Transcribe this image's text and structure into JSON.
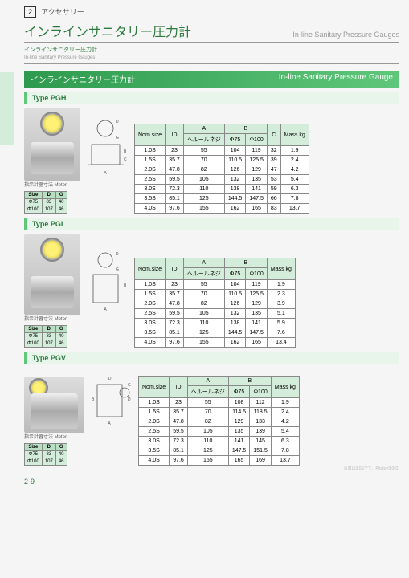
{
  "header": {
    "num": "2",
    "category": "アクセサリー",
    "title_jp": "インラインサニタリー圧力計",
    "title_en": "In-line Sanitary Pressure Gauges",
    "breadcrumb_jp": "インラインサニタリー圧力計",
    "breadcrumb_en": "In-line Sanitary Pressure Gauges"
  },
  "section": {
    "title_jp": "インラインサニタリー圧力計",
    "title_en": "In-line Sanitary Pressure Gauge"
  },
  "meter": {
    "caption": "指示計器寸法 Meter",
    "head": [
      "Size",
      "D",
      "G"
    ],
    "rows": [
      [
        "Φ75",
        "83",
        "40"
      ],
      [
        "Φ100",
        "107",
        "46"
      ]
    ]
  },
  "tables": {
    "head_main": [
      "Nom.size",
      "ID"
    ],
    "head_a": "A",
    "head_a_sub": "ヘルールネジ",
    "head_b": "B",
    "head_b_sub": [
      "Φ75",
      "Φ100"
    ],
    "head_c": "C",
    "head_mass": "Mass kg"
  },
  "pgh": {
    "label": "Type PGH",
    "rows": [
      [
        "1.0S",
        "23",
        "55",
        "104",
        "119",
        "32",
        "1.9"
      ],
      [
        "1.5S",
        "35.7",
        "70",
        "110.5",
        "125.5",
        "39",
        "2.4"
      ],
      [
        "2.0S",
        "47.8",
        "82",
        "126",
        "129",
        "47",
        "4.2"
      ],
      [
        "2.5S",
        "59.5",
        "105",
        "132",
        "135",
        "53",
        "5.4"
      ],
      [
        "3.0S",
        "72.3",
        "110",
        "138",
        "141",
        "59",
        "6.3"
      ],
      [
        "3.5S",
        "85.1",
        "125",
        "144.5",
        "147.5",
        "66",
        "7.8"
      ],
      [
        "4.0S",
        "97.6",
        "155",
        "162",
        "165",
        "83",
        "13.7"
      ]
    ]
  },
  "pgl": {
    "label": "Type PGL",
    "rows": [
      [
        "1.0S",
        "23",
        "55",
        "104",
        "119",
        "1.9"
      ],
      [
        "1.5S",
        "35.7",
        "70",
        "110.5",
        "125.5",
        "2.3"
      ],
      [
        "2.0S",
        "47.8",
        "82",
        "126",
        "129",
        "3.9"
      ],
      [
        "2.5S",
        "59.5",
        "105",
        "132",
        "135",
        "5.1"
      ],
      [
        "3.0S",
        "72.3",
        "110",
        "138",
        "141",
        "5.9"
      ],
      [
        "3.5S",
        "85.1",
        "125",
        "144.5",
        "147.5",
        "7.6"
      ],
      [
        "4.0S",
        "97.6",
        "155",
        "162",
        "165",
        "13.4"
      ]
    ]
  },
  "pgv": {
    "label": "Type PGV",
    "rows": [
      [
        "1.0S",
        "23",
        "55",
        "108",
        "112",
        "1.9"
      ],
      [
        "1.5S",
        "35.7",
        "70",
        "114.5",
        "118.5",
        "2.4"
      ],
      [
        "2.0S",
        "47.8",
        "82",
        "129",
        "133",
        "4.2"
      ],
      [
        "2.5S",
        "59.5",
        "105",
        "135",
        "139",
        "5.4"
      ],
      [
        "3.0S",
        "72.3",
        "110",
        "141",
        "145",
        "6.3"
      ],
      [
        "3.5S",
        "85.1",
        "125",
        "147.5",
        "151.5",
        "7.8"
      ],
      [
        "4.0S",
        "97.6",
        "155",
        "165",
        "169",
        "13.7"
      ]
    ]
  },
  "page": "2-9",
  "footnote": "写真は3.0Sです。Photo=3.0(S)"
}
